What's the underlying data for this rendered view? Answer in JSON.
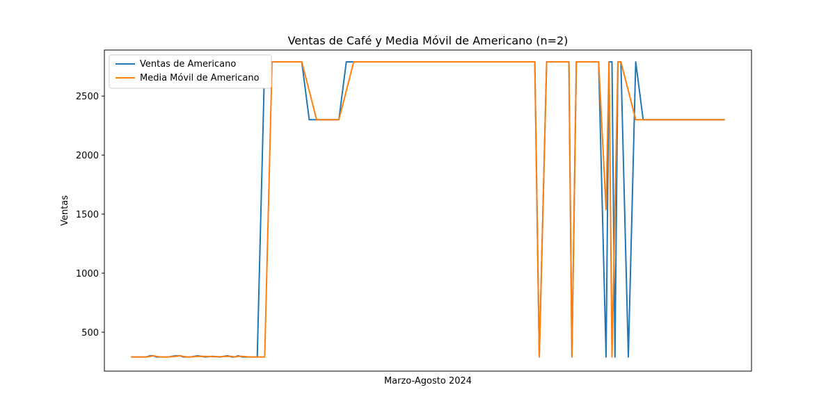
{
  "chart_data": {
    "type": "line",
    "title": "Ventas de Café y Media Móvil de Americano (n=2)",
    "xlabel": "Marzo-Agosto 2024",
    "ylabel": "Ventas",
    "ylim": [
      170,
      2890
    ],
    "yticks": [
      500,
      1000,
      1500,
      2000,
      2500
    ],
    "grid": false,
    "legend_position": "top-left",
    "x_positions_note_free": true,
    "x": [
      0,
      5,
      10,
      13,
      15,
      17,
      20,
      25,
      30,
      33,
      35,
      38,
      40,
      45,
      50,
      55,
      60,
      65,
      68,
      70,
      72,
      75,
      80,
      82,
      85,
      90,
      95,
      100,
      105,
      110,
      115,
      120,
      125,
      130,
      135,
      140,
      145,
      150,
      155,
      160,
      165,
      170,
      175,
      180,
      185,
      190,
      195,
      200,
      205,
      210,
      215,
      220,
      225,
      230,
      235,
      240,
      245,
      250,
      255,
      260,
      265,
      268,
      270,
      272,
      275,
      280,
      285,
      290,
      295,
      297,
      300,
      305,
      310,
      315,
      320,
      322,
      324,
      326,
      328,
      330,
      335,
      340,
      345,
      350,
      355,
      360,
      365,
      370,
      375,
      380,
      385,
      390,
      395,
      400
    ],
    "series": [
      {
        "name": "Ventas de Americano",
        "color": "#1f77b4",
        "values": [
          290,
          290,
          290,
          300,
          300,
          290,
          290,
          290,
          300,
          300,
          290,
          290,
          290,
          300,
          290,
          295,
          290,
          300,
          290,
          290,
          300,
          290,
          290,
          290,
          290,
          2790,
          2790,
          2790,
          2790,
          2790,
          2790,
          2300,
          2300,
          2300,
          2300,
          2300,
          2790,
          2790,
          2790,
          2790,
          2790,
          2790,
          2790,
          2790,
          2790,
          2790,
          2790,
          2790,
          2790,
          2790,
          2790,
          2790,
          2790,
          2790,
          2790,
          2790,
          2790,
          2790,
          2790,
          2790,
          2790,
          2790,
          2790,
          2790,
          290,
          2790,
          2790,
          2790,
          2790,
          290,
          2790,
          2790,
          2790,
          2790,
          290,
          2790,
          2790,
          290,
          2790,
          2790,
          290,
          2790,
          2300,
          2300,
          2300,
          2300,
          2300,
          2300,
          2300,
          2300,
          2300,
          2300,
          2300,
          2300
        ]
      },
      {
        "name": "Media Móvil de Americano",
        "color": "#ff7f0e",
        "values": [
          290,
          290,
          290,
          295,
          300,
          295,
          290,
          290,
          295,
          300,
          295,
          290,
          290,
          295,
          295,
          292,
          292,
          295,
          295,
          290,
          295,
          295,
          290,
          290,
          290,
          290,
          2790,
          2790,
          2790,
          2790,
          2790,
          2545,
          2300,
          2300,
          2300,
          2300,
          2545,
          2790,
          2790,
          2790,
          2790,
          2790,
          2790,
          2790,
          2790,
          2790,
          2790,
          2790,
          2790,
          2790,
          2790,
          2790,
          2790,
          2790,
          2790,
          2790,
          2790,
          2790,
          2790,
          2790,
          2790,
          2790,
          2790,
          2790,
          290,
          2790,
          2790,
          2790,
          2790,
          290,
          2790,
          2790,
          2790,
          2790,
          1540,
          2790,
          290,
          1540,
          2790,
          2790,
          2545,
          2300,
          2300,
          2300,
          2300,
          2300,
          2300,
          2300,
          2300,
          2300,
          2300,
          2300,
          2300,
          2300
        ]
      }
    ]
  }
}
